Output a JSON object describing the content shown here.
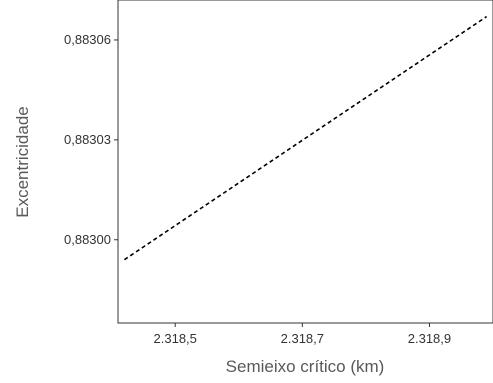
{
  "chart_data": {
    "type": "line",
    "xlabel": "Semieixo crítico (km)",
    "ylabel": "Excentricidade",
    "x_ticks": [
      {
        "value": 2318.5,
        "label": "2.318,5"
      },
      {
        "value": 2318.7,
        "label": "2.318,7"
      },
      {
        "value": 2318.9,
        "label": "2.318,9"
      }
    ],
    "y_ticks": [
      {
        "value": 0.883,
        "label": "0,88300"
      },
      {
        "value": 0.88303,
        "label": "0,88303"
      },
      {
        "value": 0.88306,
        "label": "0,88306"
      }
    ],
    "xlim": [
      2318.41,
      2319.0
    ],
    "ylim": [
      0.882975,
      0.883072
    ],
    "grid": false,
    "series": [
      {
        "line_style": "dashed",
        "color": "#000000",
        "x": [
          2318.42,
          2318.99
        ],
        "y": [
          0.882994,
          0.883067
        ]
      }
    ]
  }
}
